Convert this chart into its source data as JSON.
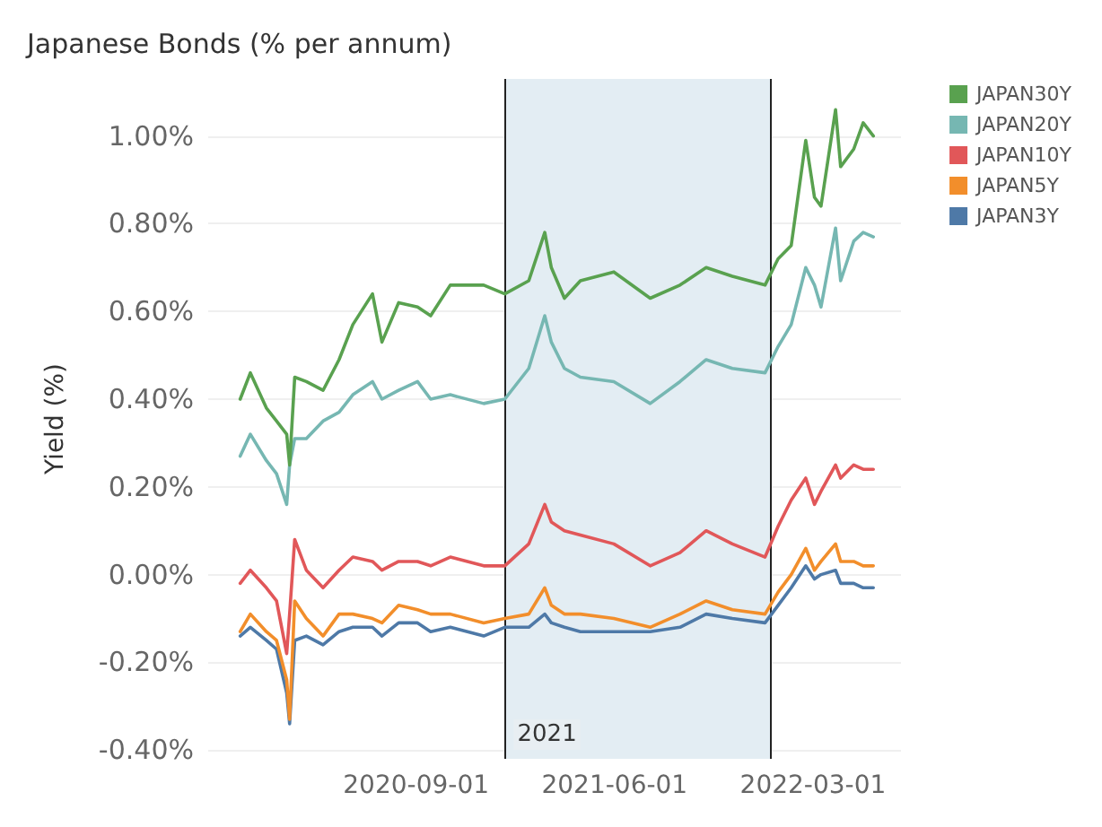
{
  "chart_data": {
    "type": "line",
    "title": "Japanese Bonds (% per annum)",
    "ylabel": "Yield (%)",
    "x": [
      "2020-01-03",
      "2020-01-17",
      "2020-02-08",
      "2020-02-22",
      "2020-03-07",
      "2020-03-11",
      "2020-03-18",
      "2020-04-03",
      "2020-04-26",
      "2020-05-18",
      "2020-06-06",
      "2020-07-03",
      "2020-07-16",
      "2020-08-08",
      "2020-09-03",
      "2020-09-21",
      "2020-10-18",
      "2020-12-03",
      "2021-01-01",
      "2021-02-03",
      "2021-02-25",
      "2021-03-06",
      "2021-03-24",
      "2021-04-15",
      "2021-05-31",
      "2021-07-20",
      "2021-08-30",
      "2021-10-05",
      "2021-11-10",
      "2021-12-25",
      "2022-01-12",
      "2022-01-30",
      "2022-02-19",
      "2022-03-03",
      "2022-03-12",
      "2022-04-01",
      "2022-04-08",
      "2022-04-26",
      "2022-05-09",
      "2022-05-23"
    ],
    "series": [
      {
        "name": "JAPAN30Y",
        "color": "#59a14f",
        "values": [
          0.4,
          0.46,
          0.38,
          0.35,
          0.32,
          0.25,
          0.45,
          0.44,
          0.42,
          0.49,
          0.57,
          0.64,
          0.53,
          0.62,
          0.61,
          0.59,
          0.66,
          0.66,
          0.64,
          0.67,
          0.78,
          0.7,
          0.63,
          0.67,
          0.69,
          0.63,
          0.66,
          0.7,
          0.68,
          0.66,
          0.72,
          0.75,
          0.99,
          0.86,
          0.84,
          1.06,
          0.93,
          0.97,
          1.03,
          1.0
        ]
      },
      {
        "name": "JAPAN20Y",
        "color": "#76b7b2",
        "values": [
          0.27,
          0.32,
          0.26,
          0.23,
          0.16,
          0.25,
          0.31,
          0.31,
          0.35,
          0.37,
          0.41,
          0.44,
          0.4,
          0.42,
          0.44,
          0.4,
          0.41,
          0.39,
          0.4,
          0.47,
          0.59,
          0.53,
          0.47,
          0.45,
          0.44,
          0.39,
          0.44,
          0.49,
          0.47,
          0.46,
          0.52,
          0.57,
          0.7,
          0.66,
          0.61,
          0.79,
          0.67,
          0.76,
          0.78,
          0.77
        ]
      },
      {
        "name": "JAPAN10Y",
        "color": "#e15759",
        "values": [
          -0.02,
          0.01,
          -0.03,
          -0.06,
          -0.18,
          -0.09,
          0.08,
          0.01,
          -0.03,
          0.01,
          0.04,
          0.03,
          0.01,
          0.03,
          0.03,
          0.02,
          0.04,
          0.02,
          0.02,
          0.07,
          0.16,
          0.12,
          0.1,
          0.09,
          0.07,
          0.02,
          0.05,
          0.1,
          0.07,
          0.04,
          0.11,
          0.17,
          0.22,
          0.16,
          0.19,
          0.25,
          0.22,
          0.25,
          0.24,
          0.24
        ]
      },
      {
        "name": "JAPAN5Y",
        "color": "#f28e2b",
        "values": [
          -0.13,
          -0.09,
          -0.13,
          -0.15,
          -0.24,
          -0.33,
          -0.06,
          -0.1,
          -0.14,
          -0.09,
          -0.09,
          -0.1,
          -0.11,
          -0.07,
          -0.08,
          -0.09,
          -0.09,
          -0.11,
          -0.1,
          -0.09,
          -0.03,
          -0.07,
          -0.09,
          -0.09,
          -0.1,
          -0.12,
          -0.09,
          -0.06,
          -0.08,
          -0.09,
          -0.04,
          0.0,
          0.06,
          0.01,
          0.03,
          0.07,
          0.03,
          0.03,
          0.02,
          0.02
        ]
      },
      {
        "name": "JAPAN3Y",
        "color": "#4e79a7",
        "values": [
          -0.14,
          -0.12,
          -0.15,
          -0.17,
          -0.27,
          -0.34,
          -0.15,
          -0.14,
          -0.16,
          -0.13,
          -0.12,
          -0.12,
          -0.14,
          -0.11,
          -0.11,
          -0.13,
          -0.12,
          -0.14,
          -0.12,
          -0.12,
          -0.09,
          -0.11,
          -0.12,
          -0.13,
          -0.13,
          -0.13,
          -0.12,
          -0.09,
          -0.1,
          -0.11,
          -0.07,
          -0.03,
          0.02,
          -0.01,
          0.0,
          0.01,
          -0.02,
          -0.02,
          -0.03,
          -0.03
        ]
      }
    ],
    "xlim": [
      "2019-11-20",
      "2022-06-30"
    ],
    "xticks": [
      "2020-09-01",
      "2021-06-01",
      "2022-03-01"
    ],
    "ylim": [
      -0.42,
      1.13
    ],
    "yticks": [
      {
        "value": -0.4,
        "label": "-0.40%"
      },
      {
        "value": -0.2,
        "label": "-0.20%"
      },
      {
        "value": 0,
        "label": "0.00%"
      },
      {
        "value": 0.2,
        "label": "0.20%"
      },
      {
        "value": 0.4,
        "label": "0.40%"
      },
      {
        "value": 0.6,
        "label": "0.60%"
      },
      {
        "value": 0.8,
        "label": "0.80%"
      },
      {
        "value": 1.0,
        "label": "1.00%"
      }
    ],
    "bands": [
      {
        "axis": "x",
        "from": "2021-01-01",
        "to": "2022-01-01",
        "label": "2021",
        "color": "#e3edf3"
      }
    ],
    "ref_lines": [
      {
        "axis": "x",
        "value": "2021-01-01",
        "color": "#222222"
      },
      {
        "axis": "x",
        "value": "2022-01-01",
        "color": "#222222"
      }
    ],
    "grid": "y",
    "legend": "top right",
    "marker": "none",
    "line_style": "solid"
  }
}
